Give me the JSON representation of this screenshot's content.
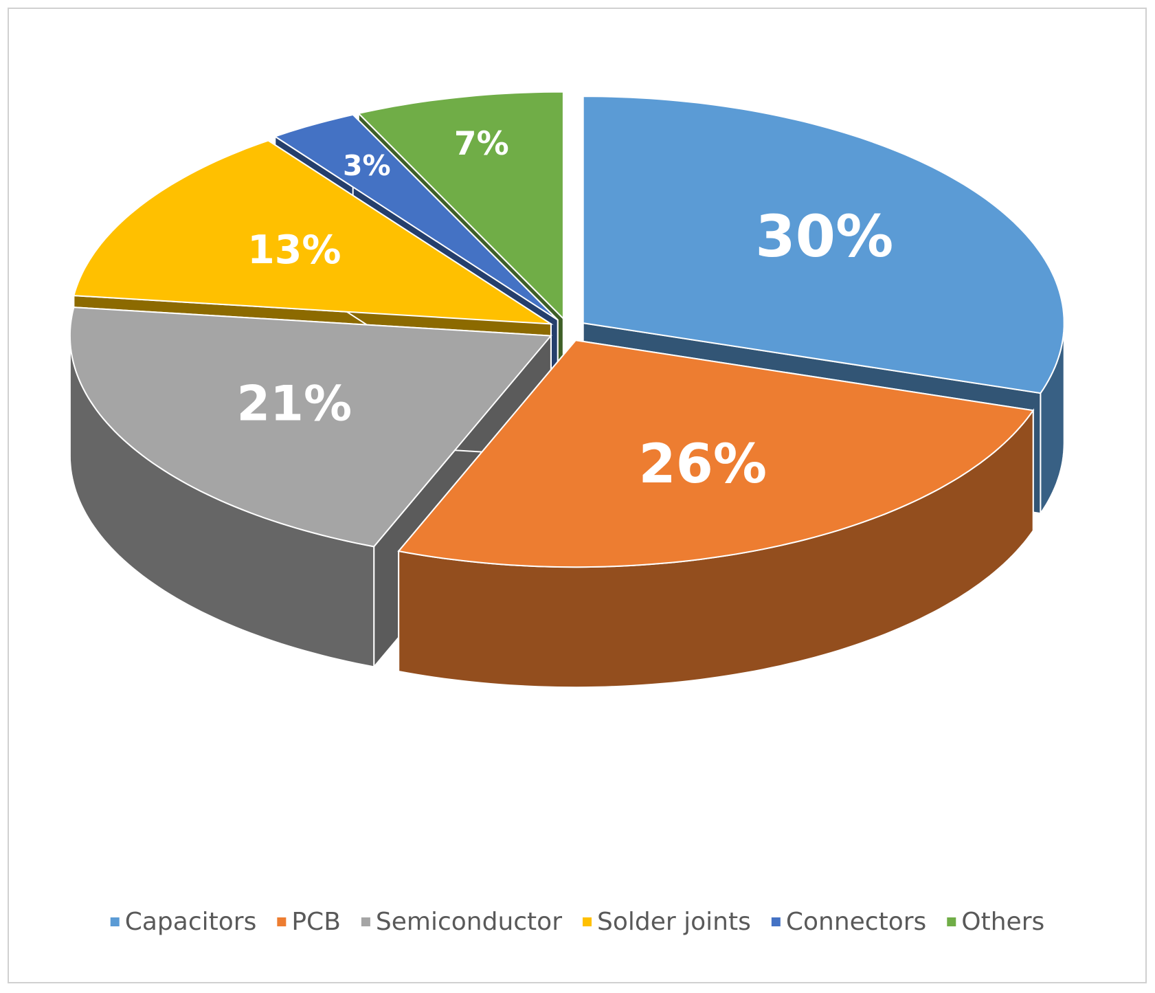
{
  "chart_data": {
    "type": "pie",
    "style": "3d-exploded",
    "categories": [
      "Capacitors",
      "PCB",
      "Semiconductor",
      "Solder joints",
      "Connectors",
      "Others"
    ],
    "values": [
      30,
      26,
      21,
      13,
      3,
      7
    ],
    "value_labels": [
      "30%",
      "26%",
      "21%",
      "13%",
      "3%",
      "7%"
    ],
    "colors": [
      "#5b9bd5",
      "#ed7d31",
      "#a5a5a5",
      "#ffc000",
      "#4472c4",
      "#70ad47"
    ],
    "legend": "bottom"
  }
}
